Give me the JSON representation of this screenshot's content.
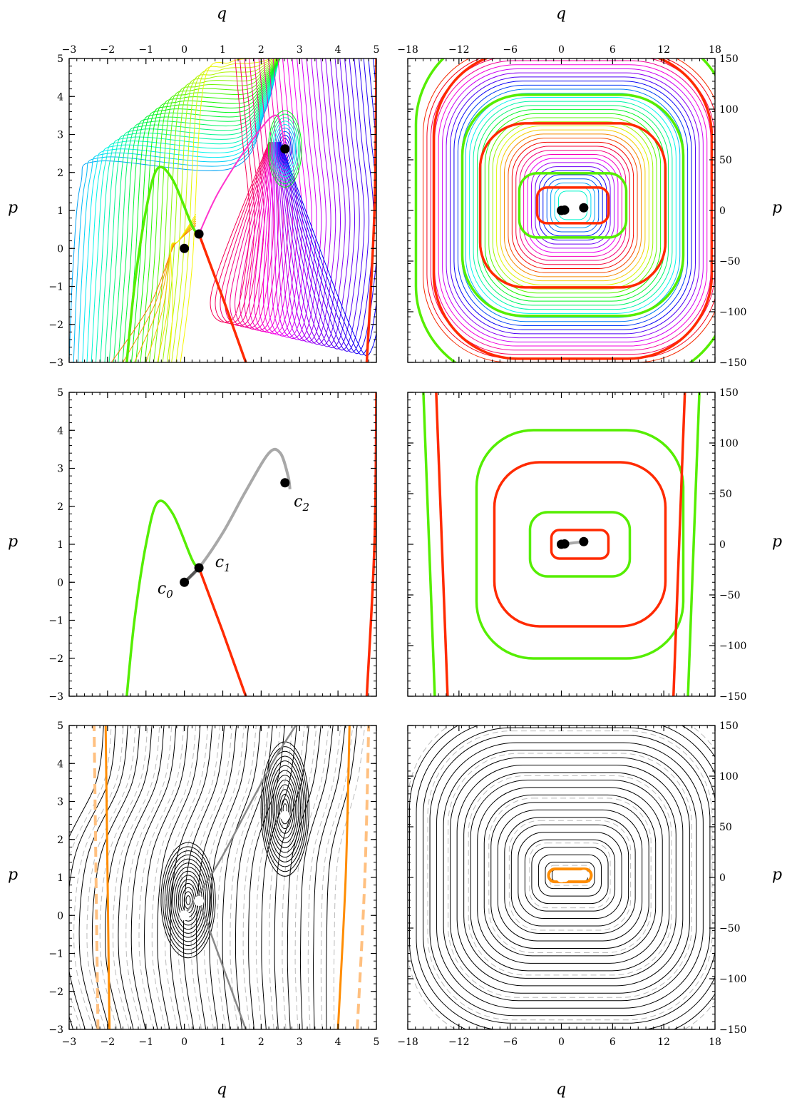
{
  "figure": {
    "x_axis_label": "q",
    "y_axis_label": "p"
  },
  "chart_data": [
    {
      "id": "left-top",
      "type": "line",
      "xlabel": "q",
      "ylabel": "p",
      "xlim": [
        -3,
        5
      ],
      "ylim": [
        -3,
        5
      ],
      "xticks": [
        "−3",
        "−2",
        "−1",
        "0",
        "1",
        "2",
        "3",
        "4",
        "5"
      ],
      "yticks": [
        "−3",
        "−2",
        "−1",
        "0",
        "1",
        "2",
        "3",
        "4",
        "5"
      ],
      "x_tick_values": [
        -3,
        -2,
        -1,
        0,
        1,
        2,
        3,
        4,
        5
      ],
      "y_tick_values": [
        -3,
        -2,
        -1,
        0,
        1,
        2,
        3,
        4,
        5
      ],
      "critical_points": [
        {
          "label": "c0",
          "q": 0,
          "p": 0
        },
        {
          "label": "c1",
          "q": 0.38,
          "p": 0.38
        },
        {
          "label": "c2",
          "q": 2.62,
          "p": 2.62
        }
      ],
      "separatrix_green": [
        [
          -1.5,
          -3
        ],
        [
          -1.3,
          -1
        ],
        [
          -1.0,
          1
        ],
        [
          -0.7,
          2.1
        ],
        [
          -0.3,
          1.8
        ],
        [
          0.2,
          0.6
        ],
        [
          0.38,
          0.38
        ]
      ],
      "separatrix_red": [
        [
          0.38,
          0.38
        ],
        [
          1.0,
          -1.3
        ],
        [
          1.6,
          -3
        ]
      ],
      "separatrix_red_right": [
        [
          4.75,
          -3
        ],
        [
          4.95,
          1
        ],
        [
          5,
          5
        ]
      ],
      "flow_lines": "rainbow family of trajectories spiralling into c2"
    },
    {
      "id": "right-top",
      "type": "line",
      "xlabel": "q",
      "ylabel": "p",
      "xlim": [
        -18,
        18
      ],
      "ylim": [
        -150,
        150
      ],
      "xticks": [
        "−18",
        "−12",
        "−6",
        "0",
        "6",
        "12",
        "18"
      ],
      "yticks": [
        "−150",
        "−100",
        "−50",
        "0",
        "50",
        "100",
        "150"
      ],
      "x_tick_values": [
        -18,
        -12,
        -6,
        0,
        6,
        12,
        18
      ],
      "y_tick_values": [
        -150,
        -100,
        -50,
        0,
        50,
        100,
        150
      ],
      "critical_points": [
        {
          "label": "c0",
          "q": 0,
          "p": 0
        },
        {
          "label": "c1",
          "q": 0.38,
          "p": 0.38
        },
        {
          "label": "c2",
          "q": 2.62,
          "p": 2.62
        }
      ],
      "flow_lines": "rainbow family of trajectories spiralling outward"
    },
    {
      "id": "left-middle",
      "type": "line",
      "xlabel": "q",
      "ylabel": "p",
      "xlim": [
        -3,
        5
      ],
      "ylim": [
        -3,
        5
      ],
      "yticks": [
        "−3",
        "−2",
        "−1",
        "0",
        "1",
        "2",
        "3",
        "4",
        "5"
      ],
      "y_tick_values": [
        -3,
        -2,
        -1,
        0,
        1,
        2,
        3,
        4,
        5
      ],
      "annotations": [
        {
          "text": "c",
          "sub": "0",
          "q": -0.7,
          "p": -0.3
        },
        {
          "text": "c",
          "sub": "1",
          "q": 0.8,
          "p": 0.4
        },
        {
          "text": "c",
          "sub": "2",
          "q": 2.85,
          "p": 2.0
        }
      ],
      "critical_points": [
        {
          "label": "c0",
          "q": 0,
          "p": 0
        },
        {
          "label": "c1",
          "q": 0.38,
          "p": 0.38
        },
        {
          "label": "c2",
          "q": 2.62,
          "p": 2.62
        }
      ],
      "heteroclinic_gray": [
        [
          0,
          0
        ],
        [
          0.38,
          0.38
        ],
        [
          1.0,
          1.3
        ],
        [
          1.6,
          2.4
        ],
        [
          2.2,
          3.4
        ],
        [
          2.5,
          3.4
        ],
        [
          2.7,
          2.8
        ],
        [
          2.75,
          2.45
        ]
      ],
      "separatrix_green": [
        [
          -1.5,
          -3
        ],
        [
          -1.3,
          -1
        ],
        [
          -1.0,
          1
        ],
        [
          -0.7,
          2.1
        ],
        [
          -0.3,
          1.8
        ],
        [
          0.2,
          0.6
        ],
        [
          0.38,
          0.38
        ]
      ],
      "separatrix_red": [
        [
          0.38,
          0.38
        ],
        [
          1.0,
          -1.3
        ],
        [
          1.6,
          -3
        ]
      ],
      "separatrix_red_right": [
        [
          4.75,
          -3
        ],
        [
          4.95,
          1
        ],
        [
          5,
          5
        ]
      ]
    },
    {
      "id": "right-middle",
      "type": "line",
      "xlabel": "q",
      "ylabel": "p",
      "xlim": [
        -18,
        18
      ],
      "ylim": [
        -150,
        150
      ],
      "yticks": [
        "−150",
        "−100",
        "−50",
        "0",
        "50",
        "100",
        "150"
      ],
      "y_tick_values": [
        -150,
        -100,
        -50,
        0,
        50,
        100,
        150
      ],
      "critical_points": [
        {
          "label": "c0",
          "q": 0,
          "p": 0
        },
        {
          "label": "c1",
          "q": 0.38,
          "p": 0.38
        },
        {
          "label": "c2",
          "q": 2.62,
          "p": 2.62
        }
      ],
      "separatrices": "nested green and red spirals"
    },
    {
      "id": "left-bottom",
      "type": "line",
      "xlabel": "q",
      "ylabel": "p",
      "xlim": [
        -3,
        5
      ],
      "ylim": [
        -3,
        5
      ],
      "xticks": [
        "−3",
        "−2",
        "−1",
        "0",
        "1",
        "2",
        "3",
        "4",
        "5"
      ],
      "yticks": [
        "−3",
        "−2",
        "−1",
        "0",
        "1",
        "2",
        "3",
        "4",
        "5"
      ],
      "x_tick_values": [
        -3,
        -2,
        -1,
        0,
        1,
        2,
        3,
        4,
        5
      ],
      "y_tick_values": [
        -3,
        -2,
        -1,
        0,
        1,
        2,
        3,
        4,
        5
      ],
      "critical_points": [
        {
          "label": "c0",
          "q": 0,
          "p": 0
        },
        {
          "label": "c1",
          "q": 0.38,
          "p": 0.38
        },
        {
          "label": "c2",
          "q": 2.62,
          "p": 2.62
        }
      ],
      "orange_solid_q": [
        -2.0,
        4.2
      ],
      "orange_dashed_q": [
        -2.3,
        4.7
      ]
    },
    {
      "id": "right-bottom",
      "type": "line",
      "xlabel": "q",
      "ylabel": "p",
      "xlim": [
        -18,
        18
      ],
      "ylim": [
        -150,
        150
      ],
      "xticks": [
        "−18",
        "−12",
        "−6",
        "0",
        "6",
        "12",
        "18"
      ],
      "yticks": [
        "−150",
        "−100",
        "−50",
        "0",
        "50",
        "100",
        "150"
      ],
      "x_tick_values": [
        -18,
        -12,
        -6,
        0,
        6,
        12,
        18
      ],
      "y_tick_values": [
        -150,
        -100,
        -50,
        0,
        50,
        100,
        150
      ],
      "critical_points": [
        {
          "label": "c0",
          "q": 0,
          "p": 0
        },
        {
          "label": "c1",
          "q": 0.38,
          "p": 0.38
        },
        {
          "label": "c2",
          "q": 2.62,
          "p": 2.62
        }
      ],
      "closed_curves": "nested rounded-rectangle level curves"
    }
  ],
  "colors": {
    "green": "#55ee00",
    "red": "#ff2a00",
    "gray": "#a8a8a8",
    "orange": "#ff8c00",
    "orange_light": "#ffc080",
    "black": "#000000"
  }
}
